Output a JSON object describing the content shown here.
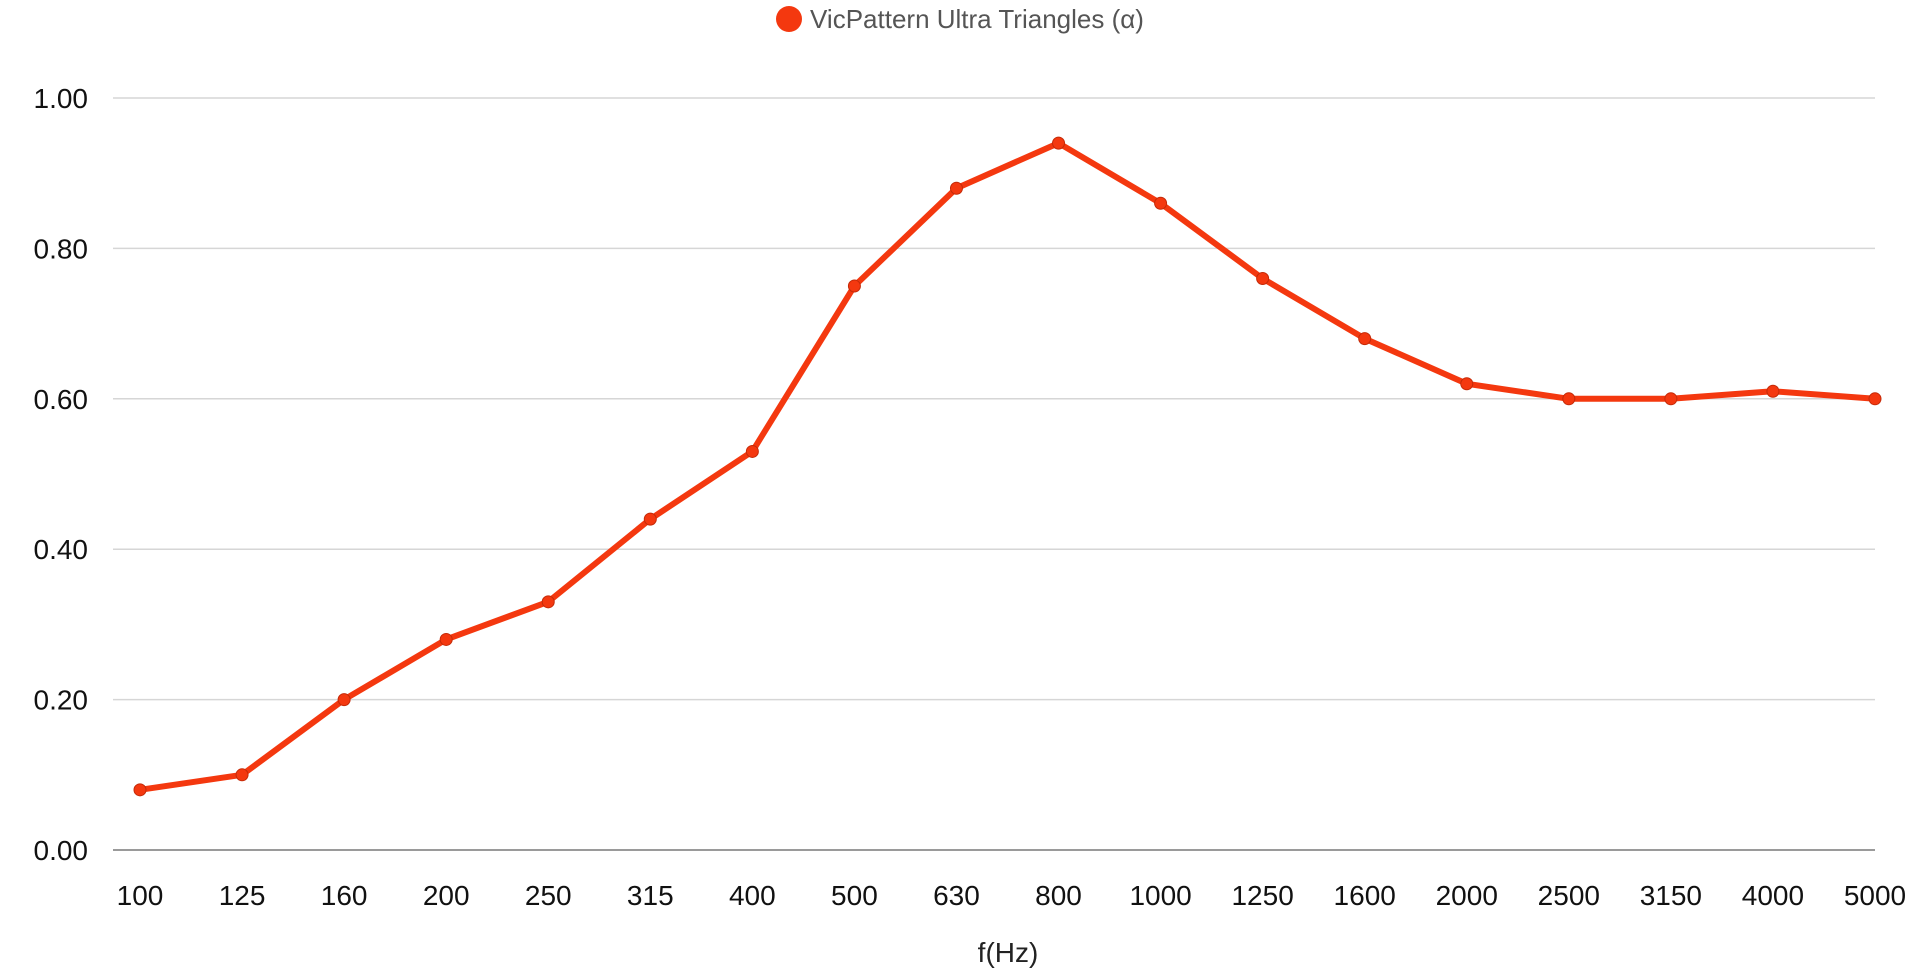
{
  "chart_data": {
    "type": "line",
    "title": "",
    "xlabel": "f(Hz)",
    "ylabel": "",
    "categories": [
      "100",
      "125",
      "160",
      "200",
      "250",
      "315",
      "400",
      "500",
      "630",
      "800",
      "1000",
      "1250",
      "1600",
      "2000",
      "2500",
      "3150",
      "4000",
      "5000"
    ],
    "series": [
      {
        "name": "VicPattern Ultra Triangles (α)",
        "color": "#f4380f",
        "values": [
          0.08,
          0.1,
          0.2,
          0.28,
          0.33,
          0.44,
          0.53,
          0.75,
          0.88,
          0.94,
          0.86,
          0.76,
          0.68,
          0.62,
          0.6,
          0.6,
          0.61,
          0.6
        ]
      }
    ],
    "ylim": [
      0,
      1
    ],
    "yticks": [
      "0.00",
      "0.20",
      "0.40",
      "0.60",
      "0.80",
      "1.00"
    ],
    "grid": true,
    "legend_position": "top-center"
  }
}
